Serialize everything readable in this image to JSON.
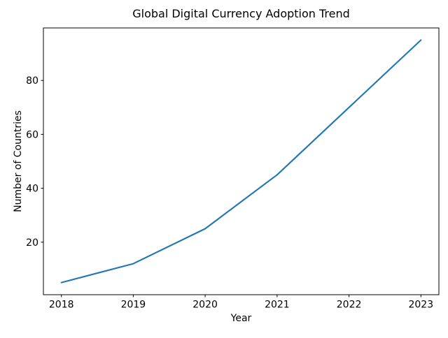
{
  "page": {
    "background_color": "#ffffff",
    "text_color": "#000000"
  },
  "chart_data": {
    "type": "line",
    "title": "Global Digital Currency Adoption Trend",
    "xlabel": "Year",
    "ylabel": "Number of Countries",
    "x": [
      2018,
      2019,
      2020,
      2021,
      2022,
      2023
    ],
    "values": [
      5,
      12,
      25,
      45,
      70,
      95
    ],
    "xticks": [
      2018,
      2019,
      2020,
      2021,
      2022,
      2023
    ],
    "yticks": [
      20,
      40,
      60,
      80
    ],
    "xlim": [
      2017.75,
      2023.25
    ],
    "ylim": [
      0.5,
      99.5
    ],
    "grid": false,
    "legend": "none",
    "markers": "none",
    "line_color": "#1f77b4",
    "axis_color": "#000000"
  }
}
